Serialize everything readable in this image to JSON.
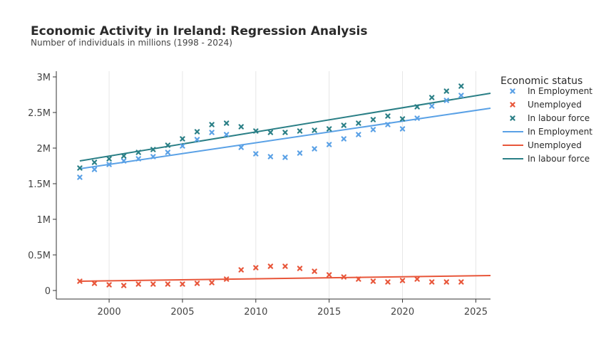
{
  "chart_data": {
    "type": "scatter",
    "title": "Economic Activity in Ireland: Regression Analysis",
    "subtitle": "Number of individuals in millions (1998 - 2024)",
    "xlim": [
      1996.4,
      2026
    ],
    "ylim": [
      -0.12,
      3.08
    ],
    "x_ticks": [
      2000,
      2005,
      2010,
      2015,
      2020,
      2025
    ],
    "y_ticks": [
      {
        "value": 0,
        "label": "0"
      },
      {
        "value": 0.5,
        "label": "0.5M"
      },
      {
        "value": 1,
        "label": "1M"
      },
      {
        "value": 1.5,
        "label": "1.5M"
      },
      {
        "value": 2,
        "label": "2M"
      },
      {
        "value": 2.5,
        "label": "2.5M"
      },
      {
        "value": 3,
        "label": "3M"
      }
    ],
    "x": [
      1998,
      1999,
      2000,
      2001,
      2002,
      2003,
      2004,
      2005,
      2006,
      2007,
      2008,
      2009,
      2010,
      2011,
      2012,
      2013,
      2014,
      2015,
      2016,
      2017,
      2018,
      2019,
      2020,
      2021,
      2022,
      2023,
      2024
    ],
    "legend_title": "Economic status",
    "legend_position": "right",
    "grid": "vertical",
    "series": [
      {
        "name": "In Employment",
        "color": "#5aa1e6",
        "marker": "x",
        "values": [
          1.59,
          1.7,
          1.77,
          1.82,
          1.85,
          1.88,
          1.94,
          2.03,
          2.12,
          2.22,
          2.19,
          2.01,
          1.92,
          1.88,
          1.87,
          1.93,
          1.99,
          2.05,
          2.13,
          2.19,
          2.26,
          2.33,
          2.27,
          2.42,
          2.59,
          2.67,
          2.74
        ]
      },
      {
        "name": "Unemployed",
        "color": "#e8563a",
        "marker": "x",
        "values": [
          0.13,
          0.1,
          0.08,
          0.07,
          0.09,
          0.09,
          0.09,
          0.09,
          0.1,
          0.11,
          0.16,
          0.29,
          0.32,
          0.34,
          0.34,
          0.31,
          0.27,
          0.22,
          0.19,
          0.16,
          0.13,
          0.12,
          0.14,
          0.16,
          0.12,
          0.12,
          0.12
        ]
      },
      {
        "name": "In labour force",
        "color": "#2a7f86",
        "marker": "x",
        "values": [
          1.72,
          1.8,
          1.85,
          1.89,
          1.94,
          1.98,
          2.04,
          2.13,
          2.23,
          2.33,
          2.35,
          2.3,
          2.24,
          2.22,
          2.22,
          2.24,
          2.25,
          2.27,
          2.32,
          2.35,
          2.4,
          2.45,
          2.41,
          2.58,
          2.71,
          2.8,
          2.87
        ]
      }
    ],
    "regression_lines": [
      {
        "name": "In Employment",
        "color": "#5aa1e6",
        "x": [
          1998,
          2026
        ],
        "y": [
          1.71,
          2.56
        ]
      },
      {
        "name": "Unemployed",
        "color": "#e8563a",
        "x": [
          1998,
          2026
        ],
        "y": [
          0.13,
          0.21
        ]
      },
      {
        "name": "In labour force",
        "color": "#2a7f86",
        "x": [
          1998,
          2026
        ],
        "y": [
          1.82,
          2.77
        ]
      }
    ]
  }
}
